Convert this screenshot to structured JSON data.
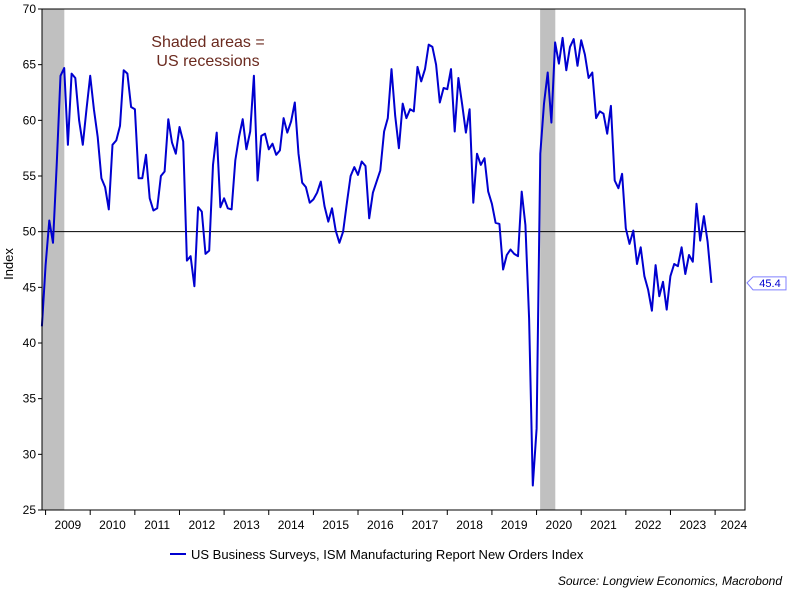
{
  "chart_data": {
    "type": "line",
    "title": "",
    "ylabel": "Index",
    "xlabel": "",
    "ylim": [
      25,
      70
    ],
    "xlim": [
      2008.92,
      2024.67
    ],
    "yticks": [
      25,
      30,
      35,
      40,
      45,
      50,
      55,
      60,
      65,
      70
    ],
    "xtick_labels": [
      "2009",
      "2010",
      "2011",
      "2012",
      "2013",
      "2014",
      "2015",
      "2016",
      "2017",
      "2018",
      "2019",
      "2020",
      "2021",
      "2022",
      "2023",
      "2024"
    ],
    "reference_line": 50,
    "annotation": "Shaded areas =\nUS recessions",
    "recessions": [
      [
        2008.92,
        2009.42
      ],
      [
        2020.08,
        2020.42
      ]
    ],
    "series": [
      {
        "name": "US Business Surveys, ISM Manufacturing Report New Orders Index",
        "color": "#0000d0",
        "last_value_label": "45.4",
        "start": 2008.917,
        "step": 0.08333,
        "values": [
          41.5,
          47.0,
          51.0,
          49.0,
          56.0,
          64.0,
          64.7,
          57.8,
          64.2,
          63.8,
          60.0,
          57.8,
          61.0,
          64.0,
          61.0,
          58.5,
          54.8,
          54.0,
          52.0,
          57.8,
          58.2,
          59.5,
          64.5,
          64.2,
          61.2,
          61.0,
          54.8,
          54.8,
          56.9,
          53.0,
          51.9,
          52.1,
          55.0,
          55.4,
          60.1,
          58.0,
          57.0,
          59.4,
          58.1,
          47.4,
          47.8,
          45.1,
          52.2,
          51.8,
          48.0,
          48.3,
          56.0,
          58.9,
          52.2,
          53.0,
          52.1,
          52.0,
          56.4,
          58.5,
          60.1,
          57.4,
          59.0,
          64.0,
          54.6,
          58.6,
          58.8,
          57.4,
          57.9,
          56.9,
          57.3,
          60.2,
          58.9,
          59.9,
          61.6,
          57.0,
          54.4,
          54.0,
          52.6,
          52.9,
          53.5,
          54.5,
          52.3,
          50.9,
          52.1,
          50.1,
          49.0,
          50.0,
          52.6,
          55.0,
          55.8,
          55.1,
          56.3,
          55.9,
          51.2,
          53.5,
          54.5,
          55.5,
          59.0,
          60.2,
          64.6,
          60.4,
          57.5,
          61.5,
          60.2,
          61.0,
          60.8,
          64.8,
          63.5,
          64.6,
          66.8,
          66.6,
          65.0,
          61.6,
          62.9,
          62.8,
          64.6,
          59.0,
          63.8,
          61.4,
          58.9,
          61.0,
          52.6,
          57.0,
          56.0,
          56.6,
          53.6,
          52.5,
          50.8,
          50.7,
          46.6,
          47.9,
          48.4,
          48.0,
          47.8,
          53.6,
          50.6,
          42.2,
          27.2,
          32.3,
          57.0,
          61.5,
          64.3,
          59.8,
          67.0,
          65.1,
          67.4,
          64.5,
          66.6,
          67.3,
          64.9,
          67.2,
          65.9,
          63.8,
          64.3,
          60.2,
          60.8,
          60.6,
          58.8,
          61.3,
          54.6,
          53.9,
          55.2,
          50.3,
          48.9,
          50.1,
          47.1,
          48.6,
          46.0,
          44.8,
          42.9,
          47.0,
          44.2,
          45.5,
          43.0,
          46.0,
          47.1,
          46.9,
          48.6,
          46.2,
          47.9,
          47.3,
          52.5,
          49.2,
          51.4,
          49.1,
          45.4
        ]
      }
    ]
  },
  "legend": {
    "label": "US Business Surveys, ISM Manufacturing Report New Orders Index"
  },
  "source": "Source: Longview Economics, Macrobond"
}
